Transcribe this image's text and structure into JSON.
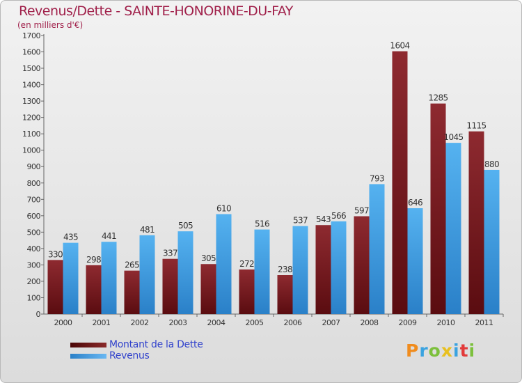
{
  "colors": {
    "debt": "#7a1a1f",
    "revenue": "#3c9ee4",
    "title": "#a0204a",
    "legend_text": "#3344cc"
  },
  "logo": "Proxiti",
  "chart_data": {
    "type": "bar",
    "title": "Revenus/Dette - SAINTE-HONORINE-DU-FAY",
    "subtitle": "(en milliers d'€)",
    "xlabel": "",
    "ylabel": "",
    "ylim": [
      0,
      1700
    ],
    "yticks": [
      0,
      100,
      200,
      300,
      400,
      500,
      600,
      700,
      800,
      900,
      1000,
      1100,
      1200,
      1300,
      1400,
      1500,
      1600,
      1700
    ],
    "grid": false,
    "legend_position": "bottom-left",
    "categories": [
      "2000",
      "2001",
      "2002",
      "2003",
      "2004",
      "2005",
      "2006",
      "2007",
      "2008",
      "2009",
      "2010",
      "2011"
    ],
    "series": [
      {
        "name": "Montant de la Dette",
        "values": [
          330,
          298,
          265,
          337,
          305,
          272,
          238,
          543,
          597,
          1604,
          1285,
          1115
        ]
      },
      {
        "name": "Revenus",
        "values": [
          435,
          441,
          481,
          505,
          610,
          516,
          537,
          566,
          793,
          646,
          1045,
          880
        ]
      }
    ]
  }
}
